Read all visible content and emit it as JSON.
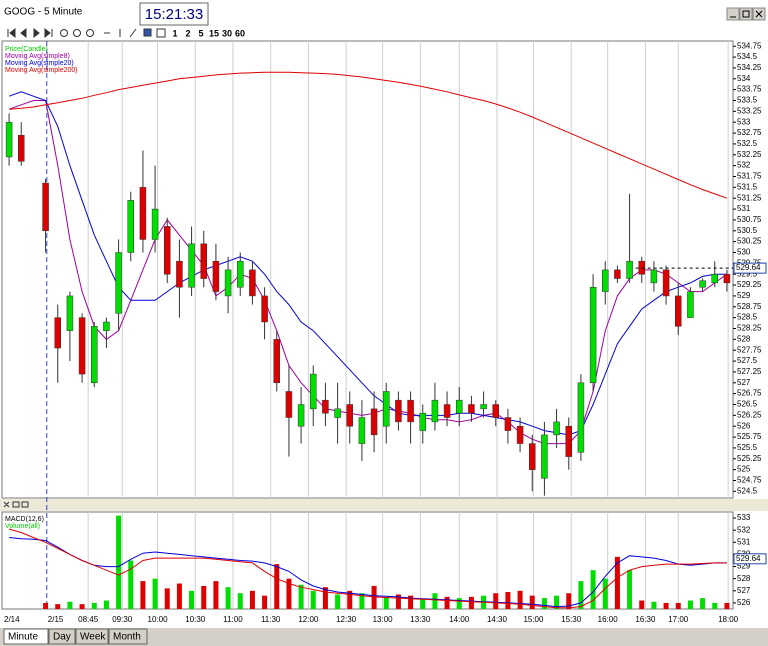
{
  "window": {
    "title": "GOOG - 5 Minute",
    "clock": "15:21:33"
  },
  "toolbar": {
    "intervals": [
      "1",
      "2",
      "5",
      "15",
      "30",
      "60"
    ]
  },
  "tabs": [
    "Minute",
    "Day",
    "Week",
    "Month"
  ],
  "chart_data": [
    {
      "type": "candlestick",
      "legend": "top-left",
      "grid": true,
      "xlim": [
        0,
        60
      ],
      "xticks": [
        {
          "value": 0,
          "label": "2/14"
        },
        {
          "value": 3.6,
          "label": "2/15"
        },
        {
          "value": 7,
          "label": "08:45"
        },
        {
          "value": 9.8,
          "label": "09:30"
        },
        {
          "value": 12.7,
          "label": "10:00"
        },
        {
          "value": 15.8,
          "label": "10:30"
        },
        {
          "value": 18.9,
          "label": "11:00"
        },
        {
          "value": 22,
          "label": "11:30"
        },
        {
          "value": 25.1,
          "label": "12:00"
        },
        {
          "value": 28.2,
          "label": "12:30"
        },
        {
          "value": 31.2,
          "label": "13:00"
        },
        {
          "value": 34.3,
          "label": "13:30"
        },
        {
          "value": 37.5,
          "label": "14:00"
        },
        {
          "value": 40.6,
          "label": "14:30"
        },
        {
          "value": 43.6,
          "label": "15:00"
        },
        {
          "value": 46.7,
          "label": "15:30"
        },
        {
          "value": 49.7,
          "label": "16:00"
        },
        {
          "value": 52.8,
          "label": "16:30"
        },
        {
          "value": 55.5,
          "label": "17:00"
        },
        {
          "value": 59.6,
          "label": "18:00"
        }
      ],
      "ylim": [
        524.37,
        534.87
      ],
      "yticks": [
        524.5,
        524.75,
        525,
        525.25,
        525.5,
        525.75,
        526,
        526.25,
        526.5,
        526.75,
        527,
        527.25,
        527.5,
        527.75,
        528,
        528.25,
        528.5,
        528.75,
        529,
        529.25,
        529.5,
        529.75,
        530,
        530.25,
        530.5,
        530.75,
        531,
        531.25,
        531.5,
        531.75,
        532,
        532.25,
        532.5,
        532.75,
        533,
        533.25,
        533.5,
        533.75,
        534,
        534.25,
        534.5,
        534.75
      ],
      "last_price": 529.64,
      "candles": {
        "name": "Price(Candle)",
        "color": "#00cc00",
        "up_color": "#00dd00",
        "down_color": "#dd0000",
        "open": [
          532.2,
          532.7,
          null,
          531.6,
          528.5,
          528.2,
          528.5,
          527,
          528.2,
          528.6,
          530,
          531.5,
          530.3,
          530.6,
          529.8,
          529.2,
          530.2,
          529.8,
          529,
          529.2,
          529.6,
          529,
          528,
          526.8,
          526,
          526.4,
          526.6,
          526.2,
          526.5,
          525.6,
          526.4,
          526,
          526.6,
          526.6,
          525.9,
          526.1,
          526.5,
          526.3,
          526.5,
          526.4,
          526.5,
          526.2,
          526,
          525.6,
          524.8,
          525.8,
          526,
          525.4,
          527,
          529.1,
          529.6,
          529.4,
          529.8,
          529.3,
          529.6,
          529,
          528.5,
          529.2,
          529.3,
          529.5
        ],
        "high": [
          533.2,
          533,
          null,
          531.7,
          528.8,
          529.1,
          528.6,
          528.4,
          528.5,
          530.3,
          531.4,
          532.35,
          532,
          530.8,
          530.3,
          530.6,
          530.5,
          530.2,
          529.9,
          530,
          529.8,
          529.2,
          528.2,
          527.4,
          526.9,
          527.4,
          527,
          527,
          526.8,
          526.6,
          526.8,
          527,
          526.8,
          526.8,
          526.5,
          527,
          526.8,
          526.9,
          526.7,
          526.8,
          526.6,
          526.4,
          526.2,
          525.8,
          526.1,
          526.4,
          526.2,
          527.2,
          529.5,
          529.8,
          529.7,
          531.35,
          529.9,
          529.8,
          529.7,
          529.3,
          529.2,
          529.4,
          529.8,
          529.6
        ],
        "low": [
          532,
          532,
          null,
          530,
          527,
          527.5,
          527,
          526.9,
          527.8,
          528.2,
          529.8,
          530,
          530,
          529.3,
          528.5,
          529,
          529.2,
          528.9,
          528.6,
          529,
          528.8,
          528,
          526.8,
          525.3,
          525.6,
          526,
          526,
          525.6,
          525.6,
          525.2,
          525.4,
          525.6,
          525.9,
          525.6,
          525.6,
          525.9,
          526,
          526,
          526.1,
          526.2,
          526,
          525.6,
          525.4,
          524.5,
          524.4,
          525.5,
          525,
          525.2,
          526.8,
          528.8,
          529.3,
          529.3,
          529.3,
          529.1,
          528.8,
          528.1,
          528.5,
          529.1,
          529.2,
          529.1
        ],
        "close": [
          533,
          532.1,
          null,
          530.5,
          527.8,
          529,
          527.2,
          528.3,
          528.4,
          530,
          531.2,
          530.3,
          531,
          529.5,
          529.2,
          530.2,
          529.4,
          529.1,
          529.6,
          529.8,
          529,
          528.4,
          527,
          526.2,
          526.5,
          527.2,
          526.3,
          526.4,
          526,
          526.2,
          525.8,
          526.8,
          526.1,
          526.1,
          526.3,
          526.6,
          526.2,
          526.6,
          526.3,
          526.5,
          526.2,
          525.9,
          525.6,
          525,
          525.8,
          526.1,
          525.3,
          527,
          529.2,
          529.6,
          529.4,
          529.8,
          529.5,
          529.6,
          529,
          528.3,
          529.1,
          529.35,
          529.5,
          529.3
        ]
      },
      "series": [
        {
          "name": "Moving Avg(simple8)",
          "color": "#a000a0",
          "values": [
            533.3,
            533.4,
            533.5,
            533.5,
            532.0,
            530.3,
            529.1,
            528.3,
            528.0,
            528.2,
            528.9,
            529.6,
            530.3,
            530.75,
            530.4,
            530.05,
            529.7,
            529.0,
            529.2,
            529.5,
            529.4,
            528.9,
            528.2,
            527.4,
            527.0,
            526.7,
            526.4,
            526.35,
            526.3,
            526.25,
            526.3,
            526.4,
            526.35,
            526.3,
            526.2,
            526.15,
            526.15,
            526.1,
            526.15,
            526.25,
            526.3,
            526.1,
            525.85,
            525.7,
            525.6,
            525.6,
            525.6,
            525.9,
            526.8,
            528.2,
            529.0,
            529.4,
            529.6,
            529.6,
            529.5,
            529.3,
            529.1,
            529.1,
            529.3,
            529.5
          ]
        },
        {
          "name": "Moving Avg(simple20)",
          "color": "#0000e0",
          "values": [
            533.6,
            533.7,
            533.6,
            533.5,
            532.9,
            532.0,
            531.2,
            530.4,
            529.8,
            529.2,
            528.9,
            528.9,
            528.9,
            529.1,
            529.3,
            529.45,
            529.6,
            529.7,
            529.8,
            529.9,
            529.8,
            529.5,
            529.1,
            528.8,
            528.4,
            528.2,
            527.9,
            527.6,
            527.3,
            527.0,
            526.7,
            526.5,
            526.3,
            526.25,
            526.25,
            526.25,
            526.25,
            526.3,
            526.3,
            526.25,
            526.2,
            526.15,
            526.1,
            526.0,
            525.9,
            525.85,
            525.8,
            525.9,
            526.5,
            527.2,
            527.9,
            528.3,
            528.7,
            528.9,
            529.1,
            529.2,
            529.3,
            529.45,
            529.5,
            529.5
          ]
        },
        {
          "name": "Moving Avg(simple200)",
          "color": "#e00000",
          "values": [
            533.3,
            533.32,
            533.35,
            533.4,
            533.45,
            533.5,
            533.55,
            533.62,
            533.68,
            533.75,
            533.8,
            533.85,
            533.9,
            533.95,
            534.0,
            534.03,
            534.06,
            534.09,
            534.11,
            534.13,
            534.14,
            534.15,
            534.15,
            534.15,
            534.14,
            534.13,
            534.12,
            534.1,
            534.07,
            534.04,
            534.0,
            533.96,
            533.92,
            533.87,
            533.82,
            533.76,
            533.7,
            533.63,
            533.56,
            533.5,
            533.42,
            533.33,
            533.23,
            533.12,
            533.0,
            532.88,
            532.76,
            532.64,
            532.52,
            532.4,
            532.28,
            532.16,
            532.04,
            531.92,
            531.8,
            531.68,
            531.56,
            531.45,
            531.35,
            531.25
          ]
        }
      ]
    },
    {
      "type": "volume-macd",
      "title": "MACD(12,6)",
      "ylim": [
        525.5,
        533.5
      ],
      "yticks": [
        526,
        527,
        528,
        529,
        530,
        531,
        532,
        533
      ],
      "volume": {
        "name": "Volume(all)",
        "color": "#00cc00",
        "values": [
          525.5,
          525.5,
          null,
          526.0,
          525.9,
          526.1,
          525.9,
          526.0,
          526.2,
          533.2,
          529.5,
          527.8,
          528.0,
          527.2,
          527.6,
          527.0,
          527.4,
          527.8,
          527.3,
          526.8,
          527.0,
          526.6,
          529.2,
          528.0,
          527.5,
          527.0,
          527.3,
          526.7,
          527.0,
          526.8,
          527.4,
          526.5,
          526.7,
          526.6,
          526.3,
          526.8,
          526.5,
          526.4,
          526.5,
          526.6,
          526.8,
          526.9,
          527.0,
          526.6,
          526.4,
          526.6,
          526.8,
          527.8,
          528.7,
          528.0,
          529.8,
          528.7,
          526.2,
          526.1,
          526.0,
          526.0,
          526.2,
          526.4,
          526.0,
          526.0
        ]
      },
      "macd_lines": [
        {
          "color": "#0000e0",
          "values": [
            531.4,
            531.3,
            531.25,
            531.15,
            530.6,
            530.0,
            529.5,
            529.1,
            529.0,
            529.0,
            529.6,
            530.1,
            530.2,
            530.1,
            530.0,
            529.9,
            529.8,
            529.7,
            529.6,
            529.5,
            529.45,
            529.3,
            529.0,
            528.6,
            527.9,
            527.4,
            527.1,
            526.9,
            526.8,
            526.7,
            526.6,
            526.55,
            526.5,
            526.4,
            526.35,
            526.3,
            526.25,
            526.2,
            526.15,
            526.1,
            526.05,
            526.0,
            525.95,
            525.9,
            525.8,
            525.7,
            525.75,
            526.0,
            526.9,
            528.2,
            529.3,
            529.9,
            529.8,
            529.7,
            529.5,
            529.2,
            529.1,
            529.2,
            529.3,
            529.3
          ]
        },
        {
          "color": "#e00000",
          "values": [
            532.1,
            531.8,
            531.4,
            531.0,
            530.5,
            530.0,
            529.5,
            529.1,
            528.7,
            528.3,
            528.8,
            529.5,
            529.7,
            529.7,
            529.7,
            529.7,
            529.7,
            529.6,
            529.5,
            529.4,
            529.3,
            528.6,
            528.0,
            527.6,
            527.3,
            527.1,
            526.9,
            526.8,
            526.7,
            526.6,
            526.5,
            526.45,
            526.4,
            526.35,
            526.3,
            526.25,
            526.2,
            526.15,
            526.1,
            526.05,
            526.0,
            525.95,
            525.9,
            525.8,
            525.7,
            525.6,
            525.6,
            525.7,
            526.2,
            527.2,
            528.1,
            528.7,
            529.0,
            529.1,
            529.2,
            529.2,
            529.2,
            529.25,
            529.3,
            529.3
          ]
        }
      ]
    }
  ]
}
